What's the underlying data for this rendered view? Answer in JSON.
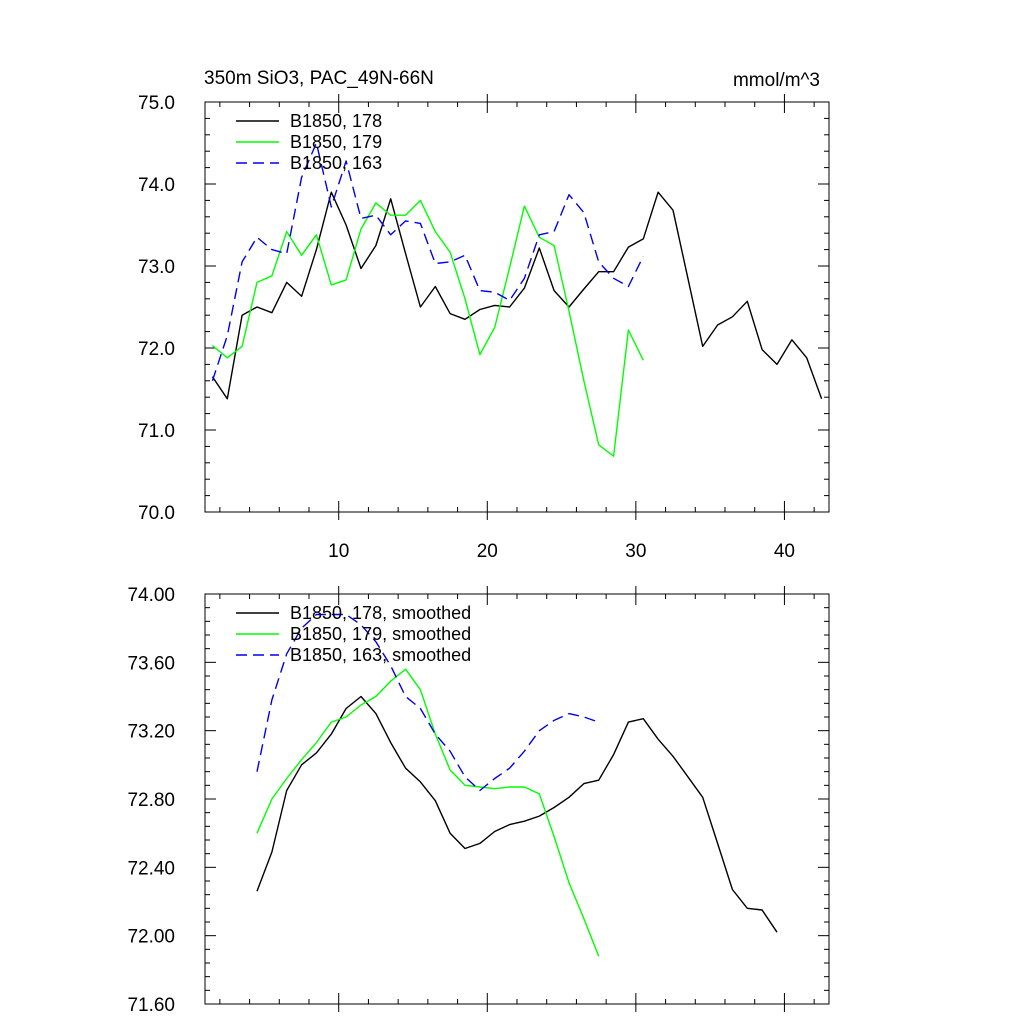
{
  "chart_data": [
    {
      "type": "line",
      "title": "350m SiO3, PAC_49N-66N",
      "units": "mmol/m^3",
      "xlabel": "",
      "ylabel": "",
      "xlim": [
        1,
        43
      ],
      "ylim": [
        70.0,
        75.0
      ],
      "xticks": [
        10,
        20,
        30,
        40
      ],
      "yticks": [
        70.0,
        71.0,
        72.0,
        73.0,
        74.0,
        75.0
      ],
      "ytick_labels": [
        "70.0",
        "71.0",
        "72.0",
        "73.0",
        "74.0",
        "75.0"
      ],
      "legend_position": "top-left",
      "series": [
        {
          "name": "B1850, 178",
          "color": "#000000",
          "dash": "solid",
          "x": [
            1.5,
            2.5,
            3.5,
            4.5,
            5.5,
            6.5,
            7.5,
            8.5,
            9.5,
            10.5,
            11.5,
            12.5,
            13.5,
            14.5,
            15.5,
            16.5,
            17.5,
            18.5,
            19.5,
            20.5,
            21.5,
            22.5,
            23.5,
            24.5,
            25.5,
            26.5,
            27.5,
            28.5,
            29.5,
            30.5,
            31.5,
            32.5,
            33.5,
            34.5,
            35.5,
            36.5,
            37.5,
            38.5,
            39.5,
            40.5,
            41.5,
            42.5
          ],
          "values": [
            71.65,
            71.38,
            72.4,
            72.5,
            72.43,
            72.8,
            72.63,
            73.2,
            73.9,
            73.5,
            72.97,
            73.25,
            73.82,
            73.15,
            72.5,
            72.75,
            72.42,
            72.35,
            72.47,
            72.52,
            72.5,
            72.73,
            73.22,
            72.7,
            72.5,
            72.72,
            72.93,
            72.93,
            73.23,
            73.33,
            73.9,
            73.68,
            72.85,
            72.02,
            72.28,
            72.38,
            72.57,
            71.98,
            71.8,
            72.1,
            71.88,
            71.38
          ]
        },
        {
          "name": "B1850, 179",
          "color": "#00ff00",
          "dash": "solid",
          "x": [
            1.5,
            2.5,
            3.5,
            4.5,
            5.5,
            6.5,
            7.5,
            8.5,
            9.5,
            10.5,
            11.5,
            12.5,
            13.5,
            14.5,
            15.5,
            16.5,
            17.5,
            18.5,
            19.5,
            20.5,
            21.5,
            22.5,
            23.5,
            24.5,
            25.5,
            26.5,
            27.5,
            28.5,
            29.5,
            30.5
          ],
          "values": [
            72.03,
            71.88,
            72.02,
            72.8,
            72.88,
            73.42,
            73.13,
            73.38,
            72.77,
            72.83,
            73.45,
            73.77,
            73.62,
            73.62,
            73.8,
            73.42,
            73.17,
            72.6,
            71.92,
            72.25,
            72.98,
            73.73,
            73.35,
            73.25,
            72.45,
            71.6,
            70.82,
            70.68,
            72.22,
            71.85
          ]
        },
        {
          "name": "B1850, 163",
          "color": "#0000ee",
          "dash": "dashed",
          "x": [
            1.5,
            2.5,
            3.5,
            4.5,
            5.5,
            6.5,
            7.5,
            8.5,
            9.5,
            10.5,
            11.5,
            12.5,
            13.5,
            14.5,
            15.5,
            16.5,
            17.5,
            18.5,
            19.5,
            20.5,
            21.5,
            22.5,
            23.5,
            24.5,
            25.5,
            26.5,
            27.5,
            28.5,
            29.5,
            30.5
          ],
          "values": [
            71.6,
            72.15,
            73.05,
            73.35,
            73.2,
            73.15,
            74.08,
            74.5,
            73.72,
            74.28,
            73.58,
            73.62,
            73.38,
            73.55,
            73.52,
            73.03,
            73.05,
            73.13,
            72.7,
            72.68,
            72.58,
            72.85,
            73.38,
            73.42,
            73.87,
            73.65,
            73.05,
            72.85,
            72.75,
            73.12
          ]
        }
      ]
    },
    {
      "type": "line",
      "title": "",
      "xlabel": "",
      "ylabel": "",
      "xlim": [
        1,
        43
      ],
      "ylim": [
        71.6,
        74.0
      ],
      "xticks": [
        10,
        20,
        30,
        40
      ],
      "yticks": [
        71.6,
        72.0,
        72.4,
        72.8,
        73.2,
        73.6,
        74.0
      ],
      "ytick_labels": [
        "71.60",
        "72.00",
        "72.40",
        "72.80",
        "73.20",
        "73.60",
        "74.00"
      ],
      "legend_position": "top-left",
      "series": [
        {
          "name": "B1850, 178, smoothed",
          "color": "#000000",
          "dash": "solid",
          "x": [
            4.5,
            5.5,
            6.5,
            7.5,
            8.5,
            9.5,
            10.5,
            11.5,
            12.5,
            13.5,
            14.5,
            15.5,
            16.5,
            17.5,
            18.5,
            19.5,
            20.5,
            21.5,
            22.5,
            23.5,
            24.5,
            25.5,
            26.5,
            27.5,
            28.5,
            29.5,
            30.5,
            31.5,
            32.5,
            33.5,
            34.5,
            35.5,
            36.5,
            37.5,
            38.5,
            39.5
          ],
          "values": [
            72.26,
            72.49,
            72.85,
            73.0,
            73.07,
            73.18,
            73.33,
            73.4,
            73.3,
            73.13,
            72.98,
            72.9,
            72.79,
            72.6,
            72.51,
            72.54,
            72.61,
            72.65,
            72.67,
            72.7,
            72.75,
            72.81,
            72.89,
            72.91,
            73.06,
            73.25,
            73.27,
            73.15,
            73.05,
            72.93,
            72.81,
            72.54,
            72.27,
            72.16,
            72.15,
            72.02
          ]
        },
        {
          "name": "B1850, 179, smoothed",
          "color": "#00ff00",
          "dash": "solid",
          "x": [
            4.5,
            5.5,
            6.5,
            7.5,
            8.5,
            9.5,
            10.5,
            11.5,
            12.5,
            13.5,
            14.5,
            15.5,
            16.5,
            17.5,
            18.5,
            19.5,
            20.5,
            21.5,
            22.5,
            23.5,
            24.5,
            25.5,
            26.5,
            27.5
          ],
          "values": [
            72.6,
            72.8,
            72.92,
            73.03,
            73.13,
            73.25,
            73.28,
            73.35,
            73.4,
            73.49,
            73.56,
            73.44,
            73.18,
            72.97,
            72.88,
            72.87,
            72.86,
            72.87,
            72.87,
            72.83,
            72.58,
            72.31,
            72.1,
            71.88
          ]
        },
        {
          "name": "B1850, 163, smoothed",
          "color": "#0000ee",
          "dash": "dashed",
          "x": [
            4.5,
            5.5,
            6.5,
            7.5,
            8.5,
            9.5,
            10.5,
            11.5,
            12.5,
            13.5,
            14.5,
            15.5,
            16.5,
            17.5,
            18.5,
            19.5,
            20.5,
            21.5,
            22.5,
            23.5,
            24.5,
            25.5,
            26.5,
            27.5
          ],
          "values": [
            72.96,
            73.38,
            73.65,
            73.8,
            73.88,
            73.88,
            73.88,
            73.82,
            73.72,
            73.58,
            73.4,
            73.33,
            73.18,
            73.08,
            72.93,
            72.85,
            72.92,
            72.98,
            73.08,
            73.2,
            73.26,
            73.3,
            73.28,
            73.25
          ]
        }
      ]
    }
  ]
}
